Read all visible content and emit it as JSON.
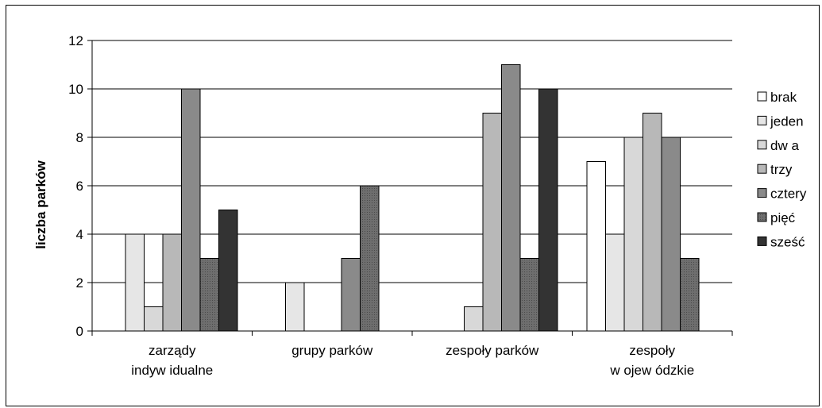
{
  "chart_data": {
    "type": "bar",
    "title": "",
    "xlabel": "",
    "ylabel": "liczba parków",
    "ylim": [
      0,
      12
    ],
    "yticks": [
      0,
      2,
      4,
      6,
      8,
      10,
      12
    ],
    "grid": true,
    "legend_position": "right",
    "categories": [
      [
        "zarządy",
        "indyw idualne"
      ],
      [
        "grupy parków"
      ],
      [
        "zespoły parków"
      ],
      [
        "zespoły",
        "w ojew ódzkie"
      ]
    ],
    "series": [
      {
        "name": "brak",
        "color": "#ffffff",
        "values": [
          0,
          0,
          0,
          7
        ]
      },
      {
        "name": "jeden",
        "color": "#e6e6e6",
        "values": [
          4,
          2,
          0,
          4
        ]
      },
      {
        "name": "dw a",
        "color": "#d8d8d8",
        "values": [
          1,
          0,
          1,
          8
        ]
      },
      {
        "name": "trzy",
        "color": "#b8b8b8",
        "values": [
          4,
          0,
          9,
          9
        ]
      },
      {
        "name": "cztery",
        "color": "#8a8a8a",
        "values": [
          10,
          3,
          11,
          8
        ]
      },
      {
        "name": "pięć",
        "color": "#707070",
        "values": [
          3,
          6,
          3,
          3
        ]
      },
      {
        "name": "sześć",
        "color": "#333333",
        "values": [
          5,
          0,
          10,
          0
        ]
      }
    ]
  }
}
